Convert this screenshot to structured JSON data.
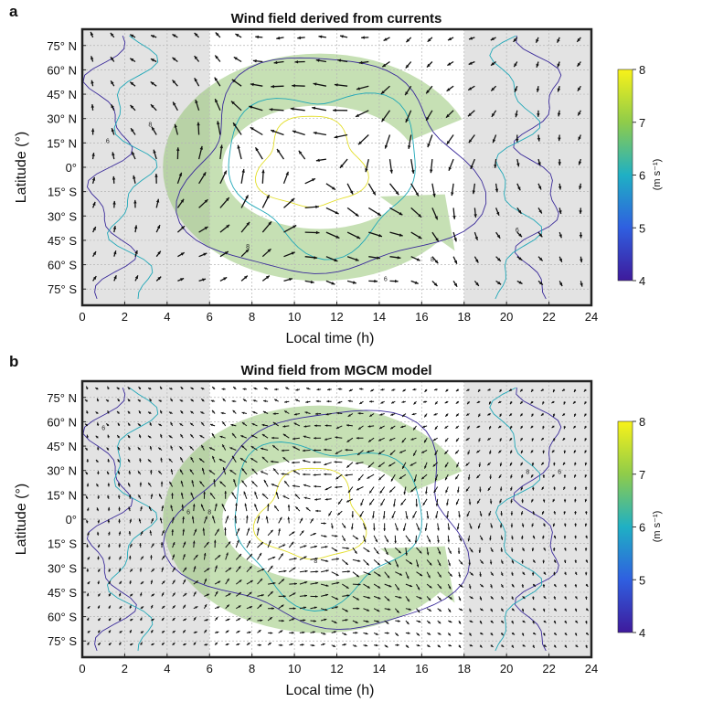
{
  "chart_data": [
    {
      "panel": "a",
      "type": "quiver-contour",
      "title": "Wind field derived from currents",
      "xlabel": "Local time (h)",
      "ylabel": "Latitude (°)",
      "xlim": [
        0,
        24
      ],
      "ylim": [
        -85,
        85
      ],
      "x_ticks": [
        "0",
        "2",
        "4",
        "6",
        "8",
        "10",
        "12",
        "14",
        "16",
        "18",
        "20",
        "22",
        "24"
      ],
      "y_ticks": [
        {
          "value": 75,
          "label": "75° N"
        },
        {
          "value": 60,
          "label": "60° N"
        },
        {
          "value": 45,
          "label": "45° N"
        },
        {
          "value": 30,
          "label": "30° N"
        },
        {
          "value": 15,
          "label": "15° N"
        },
        {
          "value": 0,
          "label": "0°"
        },
        {
          "value": -15,
          "label": "15° S"
        },
        {
          "value": -30,
          "label": "30° S"
        },
        {
          "value": -45,
          "label": "45° S"
        },
        {
          "value": -60,
          "label": "60° S"
        },
        {
          "value": -75,
          "label": "75° S"
        }
      ],
      "night_shading_hours": [
        [
          0,
          6
        ],
        [
          18,
          24
        ]
      ],
      "grid": true,
      "colorbar": {
        "min": 4,
        "max": 8,
        "ticks": [
          "4",
          "5",
          "6",
          "7",
          "8"
        ],
        "unit": "(m s⁻¹)"
      },
      "contour_levels": [
        4,
        6,
        8
      ],
      "flow_pattern": "counterclockwise vortex centred near 11 h, 0°",
      "vector_grid": {
        "dx_hours": 1,
        "dlat": 15
      },
      "contour_label_samples": [
        {
          "x": 1.2,
          "y": 15,
          "label": "6"
        },
        {
          "x": 3.2,
          "y": 25,
          "label": "8"
        },
        {
          "x": 7.8,
          "y": -50,
          "label": "8"
        },
        {
          "x": 14.3,
          "y": -70,
          "label": "6"
        },
        {
          "x": 16.5,
          "y": -58,
          "label": "8"
        },
        {
          "x": 20.5,
          "y": -40,
          "label": "6"
        }
      ]
    },
    {
      "panel": "b",
      "type": "quiver-contour",
      "title": "Wind field from MGCM model",
      "xlabel": "Local time (h)",
      "ylabel": "Latitude (°)",
      "xlim": [
        0,
        24
      ],
      "ylim": [
        -85,
        85
      ],
      "x_ticks": [
        "0",
        "2",
        "4",
        "6",
        "8",
        "10",
        "12",
        "14",
        "16",
        "18",
        "20",
        "22",
        "24"
      ],
      "y_ticks": [
        {
          "value": 75,
          "label": "75° N"
        },
        {
          "value": 60,
          "label": "60° N"
        },
        {
          "value": 45,
          "label": "45° N"
        },
        {
          "value": 30,
          "label": "30° N"
        },
        {
          "value": 15,
          "label": "15° N"
        },
        {
          "value": 0,
          "label": "0°"
        },
        {
          "value": -15,
          "label": "15° S"
        },
        {
          "value": -30,
          "label": "30° S"
        },
        {
          "value": -45,
          "label": "45° S"
        },
        {
          "value": -60,
          "label": "60° S"
        },
        {
          "value": -75,
          "label": "75° S"
        }
      ],
      "night_shading_hours": [
        [
          0,
          6
        ],
        [
          18,
          24
        ]
      ],
      "grid": true,
      "colorbar": {
        "min": 4,
        "max": 8,
        "ticks": [
          "4",
          "5",
          "6",
          "7",
          "8"
        ],
        "unit": "(m s⁻¹)"
      },
      "contour_levels": [
        4,
        6,
        8
      ],
      "flow_pattern": "counterclockwise vortex centred near 11 h, 0°",
      "vector_grid": {
        "dx_hours": 0.5,
        "dlat": 7.5
      },
      "contour_label_samples": [
        {
          "x": 1.0,
          "y": 55,
          "label": "6"
        },
        {
          "x": 5.0,
          "y": 3,
          "label": "6"
        },
        {
          "x": 6.0,
          "y": 3,
          "label": "8"
        },
        {
          "x": 11.0,
          "y": -27,
          "label": "8"
        },
        {
          "x": 21.0,
          "y": 28,
          "label": "8"
        },
        {
          "x": 22.5,
          "y": 28,
          "label": "6"
        }
      ]
    }
  ]
}
